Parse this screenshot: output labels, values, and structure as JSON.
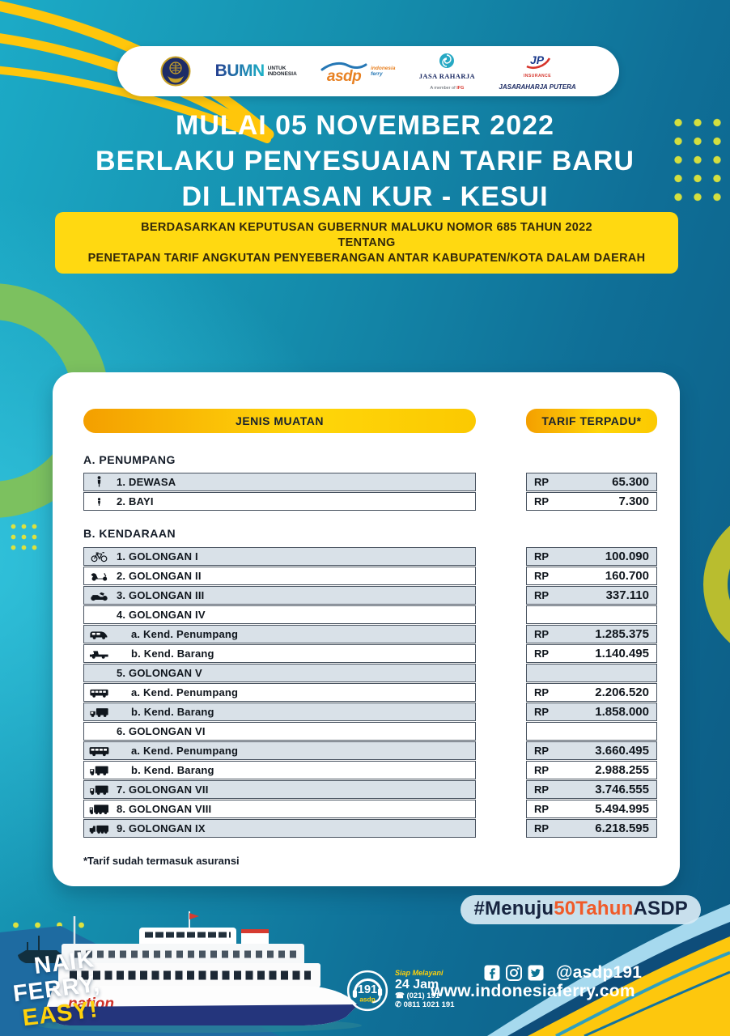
{
  "header": {
    "logos": {
      "bumn": {
        "text": "BUMN",
        "tag1": "UNTUK",
        "tag2": "INDONESIA"
      },
      "asdp": {
        "text": "asdp",
        "tag1": "indonesia",
        "tag2": "ferry"
      },
      "jasa_raharja": {
        "text": "JASA RAHARJA",
        "member": "A member of",
        "ifg": "IFG"
      },
      "jp": {
        "monogram": "JP",
        "insurance": "INSURANCE",
        "text": "JASARAHARJA PUTERA"
      }
    }
  },
  "title": {
    "line1": "MULAI 05 NOVEMBER 2022",
    "line2": "BERLAKU PENYESUAIAN TARIF BARU",
    "line3": "DI LINTASAN KUR - KESUI"
  },
  "decree": {
    "line1": "BERDASARKAN KEPUTUSAN GUBERNUR MALUKU NOMOR 685 TAHUN 2022",
    "line2": "TENTANG",
    "line3": "PENETAPAN TARIF ANGKUTAN PENYEBERANGAN ANTAR KABUPATEN/KOTA DALAM DAERAH"
  },
  "table": {
    "col_jenis": "JENIS MUATAN",
    "col_tarif": "TARIF TERPADU*",
    "section_a": "A. PENUMPANG",
    "section_b": "B. KENDARAAN",
    "currency": "RP",
    "rows_a": [
      {
        "icon": "person",
        "label": "1. DEWASA",
        "value": "65.300",
        "shade": true
      },
      {
        "icon": "baby",
        "label": "2. BAYI",
        "value": "7.300",
        "shade": false
      }
    ],
    "rows_b": [
      {
        "icon": "bicycle",
        "label": "1. GOLONGAN I",
        "value": "100.090",
        "shade": true
      },
      {
        "icon": "scooter",
        "label": "2. GOLONGAN II",
        "value": "160.700",
        "shade": false
      },
      {
        "icon": "motorcycle",
        "label": "3. GOLONGAN III",
        "value": "337.110",
        "shade": true
      },
      {
        "icon": null,
        "label": "4. GOLONGAN IV",
        "value": null,
        "shade": false
      },
      {
        "icon": "van",
        "label": "a. Kend. Penumpang",
        "value": "1.285.375",
        "shade": true,
        "indent": true
      },
      {
        "icon": "pickup",
        "label": "b. Kend. Barang",
        "value": "1.140.495",
        "shade": false,
        "indent": true
      },
      {
        "icon": null,
        "label": "5. GOLONGAN V",
        "value": null,
        "shade": true
      },
      {
        "icon": "minibus",
        "label": "a. Kend. Penumpang",
        "value": "2.206.520",
        "shade": false,
        "indent": true
      },
      {
        "icon": "truck",
        "label": "b. Kend. Barang",
        "value": "1.858.000",
        "shade": true,
        "indent": true
      },
      {
        "icon": null,
        "label": "6. GOLONGAN VI",
        "value": null,
        "shade": false
      },
      {
        "icon": "bus",
        "label": "a. Kend. Penumpang",
        "value": "3.660.495",
        "shade": true,
        "indent": true
      },
      {
        "icon": "boxtruck",
        "label": "b. Kend. Barang",
        "value": "2.988.255",
        "shade": false,
        "indent": true
      },
      {
        "icon": "boxtruck",
        "label": "7. GOLONGAN VII",
        "value": "3.746.555",
        "shade": true
      },
      {
        "icon": "bigtruck",
        "label": "8. GOLONGAN VIII",
        "value": "5.494.995",
        "shade": false
      },
      {
        "icon": "trailer",
        "label": "9. GOLONGAN IX",
        "value": "6.218.595",
        "shade": true
      }
    ],
    "footnote": "*Tarif sudah termasuk asuransi"
  },
  "hashtag": {
    "part1": "#Menuju",
    "part2": "50Tahun",
    "part3": "ASDP"
  },
  "footer": {
    "slogan": {
      "line1": "NAIK",
      "line2": "FERRY,",
      "line3": "EASY!"
    },
    "ship_text": "nation",
    "call_badge": {
      "number": "191",
      "brand": "asdp"
    },
    "service": {
      "tagline": "Siap Melayani",
      "hours": "24 Jam",
      "phone": "(021) 191",
      "whatsapp": "0811 1021 191"
    },
    "social_handle": "@asdp191",
    "website": "www.indonesiaferry.com"
  },
  "colors": {
    "accent_yellow": "#ffd911",
    "pill_orange": "#f49f00",
    "row_shade": "#d9e1e8",
    "hashtag_orange": "#f05a28",
    "bg_teal": "#1cabc7",
    "bg_navy": "#0c5a83",
    "ring_green": "#7cc15f",
    "ring_olive": "#b9bd2f"
  }
}
